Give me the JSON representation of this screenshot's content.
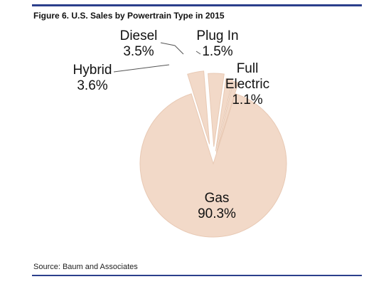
{
  "figure": {
    "title": "Figure 6. U.S. Sales by Powertrain Type in 2015",
    "source": "Source: Baum and Associates"
  },
  "colors": {
    "rule": "#2b3f8c",
    "slice_fill": "#f2d9c8",
    "slice_edge": "#e8c9b4",
    "leader": "#555555"
  },
  "chart_data": {
    "type": "pie",
    "title": "Figure 6. U.S. Sales by Powertrain Type in 2015",
    "unit": "%",
    "exploded": true,
    "slices": [
      {
        "label": "Gas",
        "value": 90.3,
        "display": "90.3%"
      },
      {
        "label": "Hybrid",
        "value": 3.6,
        "display": "3.6%"
      },
      {
        "label": "Diesel",
        "value": 3.5,
        "display": "3.5%"
      },
      {
        "label": "Plug In",
        "value": 1.5,
        "display": "1.5%"
      },
      {
        "label": "Full Electric",
        "label_lines": [
          "Full",
          "Electric"
        ],
        "value": 1.1,
        "display": "1.1%"
      }
    ]
  }
}
